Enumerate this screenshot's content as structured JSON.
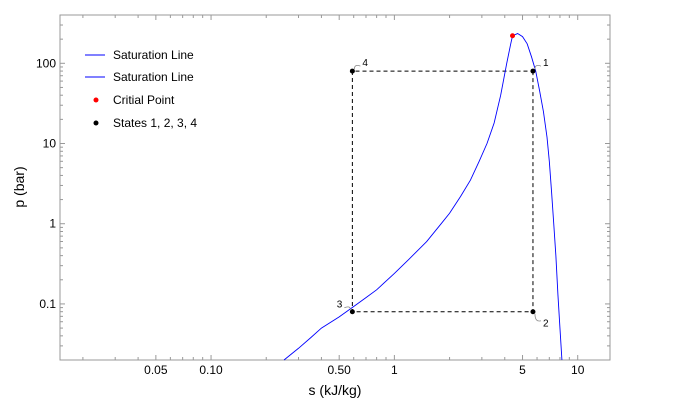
{
  "chart_data": {
    "type": "line",
    "xlabel": "s (kJ/kg)",
    "ylabel": "p (bar)",
    "xscale": "log",
    "yscale": "log",
    "xlim": [
      0.015,
      15
    ],
    "ylim": [
      0.02,
      400
    ],
    "xticks": [
      {
        "value": 0.05,
        "label": "0.05"
      },
      {
        "value": 0.1,
        "label": "0.10"
      },
      {
        "value": 0.5,
        "label": "0.50"
      },
      {
        "value": 1,
        "label": "1"
      },
      {
        "value": 5,
        "label": "5"
      },
      {
        "value": 10,
        "label": "10"
      }
    ],
    "yticks": [
      {
        "value": 0.1,
        "label": "0.1"
      },
      {
        "value": 1,
        "label": "1"
      },
      {
        "value": 10,
        "label": "10"
      },
      {
        "value": 100,
        "label": "100"
      }
    ],
    "grid": false,
    "legend_position": "top-left",
    "series": [
      {
        "name": "Saturation Line",
        "color": "#0000ff",
        "points": [
          [
            0.25,
            0.02
          ],
          [
            0.3,
            0.028
          ],
          [
            0.35,
            0.038
          ],
          [
            0.4,
            0.05
          ],
          [
            0.5,
            0.069
          ],
          [
            0.6,
            0.093
          ],
          [
            0.7,
            0.12
          ],
          [
            0.8,
            0.15
          ],
          [
            1.0,
            0.24
          ],
          [
            1.2,
            0.36
          ],
          [
            1.5,
            0.6
          ],
          [
            1.8,
            1.0
          ],
          [
            2.0,
            1.35
          ],
          [
            2.3,
            2.2
          ],
          [
            2.6,
            3.5
          ],
          [
            2.9,
            6.0
          ],
          [
            3.2,
            10.0
          ],
          [
            3.5,
            18.0
          ],
          [
            3.8,
            40.0
          ],
          [
            4.1,
            100.0
          ],
          [
            4.3,
            170.0
          ],
          [
            4.41,
            220.6
          ]
        ]
      },
      {
        "name": "Saturation Line",
        "color": "#0000ff",
        "points": [
          [
            4.41,
            220.6
          ],
          [
            4.7,
            235.0
          ],
          [
            5.0,
            215.0
          ],
          [
            5.3,
            175.0
          ],
          [
            5.6,
            120.0
          ],
          [
            5.9,
            80.0
          ],
          [
            6.2,
            45.0
          ],
          [
            6.5,
            25.0
          ],
          [
            6.8,
            12.0
          ],
          [
            7.0,
            6.0
          ],
          [
            7.2,
            2.5
          ],
          [
            7.4,
            1.0
          ],
          [
            7.6,
            0.4
          ],
          [
            7.8,
            0.13
          ],
          [
            8.0,
            0.05
          ],
          [
            8.2,
            0.02
          ]
        ]
      }
    ],
    "critical_point": {
      "name": "Critial Point",
      "color": "#ff0000",
      "s": 4.41,
      "p": 220.6
    },
    "states": {
      "name": "States 1, 2, 3, 4",
      "color": "#000000",
      "points": [
        {
          "label": "1",
          "s": 5.7,
          "p": 80
        },
        {
          "label": "2",
          "s": 5.7,
          "p": 0.08
        },
        {
          "label": "3",
          "s": 0.59,
          "p": 0.08
        },
        {
          "label": "4",
          "s": 0.59,
          "p": 80
        }
      ]
    }
  }
}
